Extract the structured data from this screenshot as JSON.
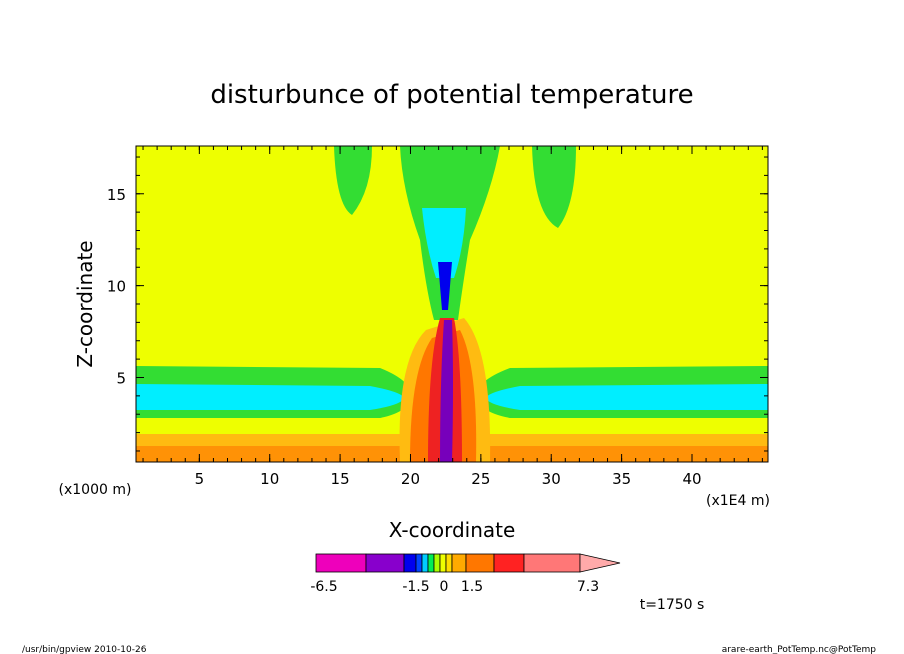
{
  "chart_data": {
    "type": "heatmap",
    "title": "disturbunce of potential temperature",
    "xlabel": "X-coordinate",
    "ylabel": "Z-coordinate",
    "x_unit": "(x1E4 m)",
    "y_unit": "(x1000 m)",
    "x_ticks": [
      "5",
      "10",
      "15",
      "20",
      "25",
      "30",
      "35",
      "40"
    ],
    "x_tick_values": [
      5,
      10,
      15,
      20,
      25,
      30,
      35,
      40
    ],
    "y_ticks": [
      "5",
      "10",
      "15"
    ],
    "y_tick_values": [
      5,
      10,
      15
    ],
    "xlim": [
      0.5,
      45.4
    ],
    "ylim": [
      0.4,
      17.6
    ],
    "time_label": "t=1750 s",
    "colorbar": {
      "labels": [
        "-6.5",
        "-1.5",
        "0",
        "1.5",
        "7.3"
      ],
      "label_values": [
        -6.5,
        -1.5,
        0,
        1.5,
        7.3
      ],
      "colors": [
        "#ee00bb",
        "#8800cc",
        "#0000ee",
        "#0044ff",
        "#00ccff",
        "#00ee55",
        "#aaff00",
        "#eeff00",
        "#ffdd00",
        "#ffaa00",
        "#ff7700",
        "#ff2222",
        "#ff7777",
        "#ffaaaa"
      ],
      "extend": "right"
    },
    "colors": {
      "background_field": "#eeff00",
      "green": "#33dd33",
      "cyan": "#00eeff",
      "orange": "#ff7700",
      "light_orange": "#ffbb11",
      "red": "#ee2222",
      "purple": "#7700bb",
      "blue": "#0000ee"
    }
  },
  "footer": {
    "left": "/usr/bin/gpview  2010-10-26",
    "right": "arare-earth_PotTemp.nc@PotTemp"
  }
}
